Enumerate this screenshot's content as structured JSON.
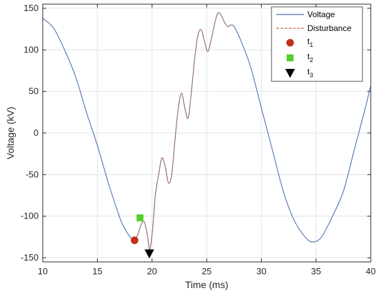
{
  "chart_data": {
    "type": "line",
    "xlabel": "Time (ms)",
    "ylabel": "Voltage (kV)",
    "xlim": [
      10,
      40
    ],
    "ylim": [
      -155,
      155
    ],
    "xticks": [
      10,
      15,
      20,
      25,
      30,
      35,
      40
    ],
    "yticks": [
      -150,
      -100,
      -50,
      0,
      50,
      100,
      150
    ],
    "grid": true,
    "legend_position": "top-right",
    "series": [
      {
        "name": "Voltage",
        "color": "#4a6fb5",
        "style": "solid",
        "x": [
          10,
          11,
          12,
          13,
          14,
          15,
          16,
          17,
          17.5,
          18,
          18.4,
          18.7,
          19.0,
          19.3,
          19.6,
          19.75,
          19.9,
          20.1,
          20.3,
          20.6,
          20.9,
          21.2,
          21.5,
          21.8,
          22.1,
          22.4,
          22.7,
          23.0,
          23.3,
          23.6,
          23.9,
          24.2,
          24.5,
          24.8,
          25.1,
          25.4,
          25.7,
          26.0,
          26.3,
          26.6,
          26.9,
          27.2,
          27.5,
          28,
          29,
          30,
          31,
          32,
          33,
          34,
          34.7,
          35.5,
          36.5,
          37.5,
          38.5,
          39.5,
          40
        ],
        "y": [
          138,
          126,
          100,
          68,
          25,
          -15,
          -60,
          -100,
          -115,
          -125,
          -129,
          -122,
          -110,
          -107,
          -125,
          -140,
          -133,
          -108,
          -75,
          -50,
          -30,
          -40,
          -60,
          -50,
          -8,
          30,
          48,
          30,
          18,
          50,
          90,
          118,
          124,
          110,
          98,
          112,
          130,
          144,
          142,
          134,
          128,
          130,
          128,
          115,
          80,
          30,
          -20,
          -70,
          -105,
          -125,
          -131,
          -125,
          -100,
          -70,
          -20,
          30,
          57
        ]
      },
      {
        "name": "Disturbance",
        "color": "#c8693a",
        "style": "dashed",
        "x": [
          18.4,
          18.7,
          19.0,
          19.3,
          19.6,
          19.75,
          19.9,
          20.1,
          20.3,
          20.6,
          20.9,
          21.2,
          21.5,
          21.8,
          22.1,
          22.4,
          22.7,
          23.0,
          23.3,
          23.6,
          23.9,
          24.2,
          24.5,
          24.8,
          25.1,
          25.4,
          25.7,
          26.0,
          26.3,
          26.6,
          26.9,
          27.2
        ],
        "y": [
          -129,
          -122,
          -110,
          -107,
          -125,
          -140,
          -133,
          -108,
          -75,
          -50,
          -30,
          -40,
          -60,
          -50,
          -8,
          30,
          48,
          30,
          18,
          50,
          90,
          118,
          124,
          110,
          98,
          112,
          130,
          144,
          142,
          134,
          128,
          130
        ]
      }
    ],
    "markers": [
      {
        "name": "t1",
        "label_base": "t",
        "label_sub": "1",
        "shape": "circle",
        "color": "#c0311a",
        "x": 18.4,
        "y": -129
      },
      {
        "name": "t2",
        "label_base": "t",
        "label_sub": "2",
        "shape": "square",
        "color": "#55d02a",
        "x": 18.9,
        "y": -102
      },
      {
        "name": "t3",
        "label_base": "t",
        "label_sub": "3",
        "shape": "triangle-down",
        "color": "#000000",
        "x": 19.75,
        "y": -145
      }
    ]
  }
}
